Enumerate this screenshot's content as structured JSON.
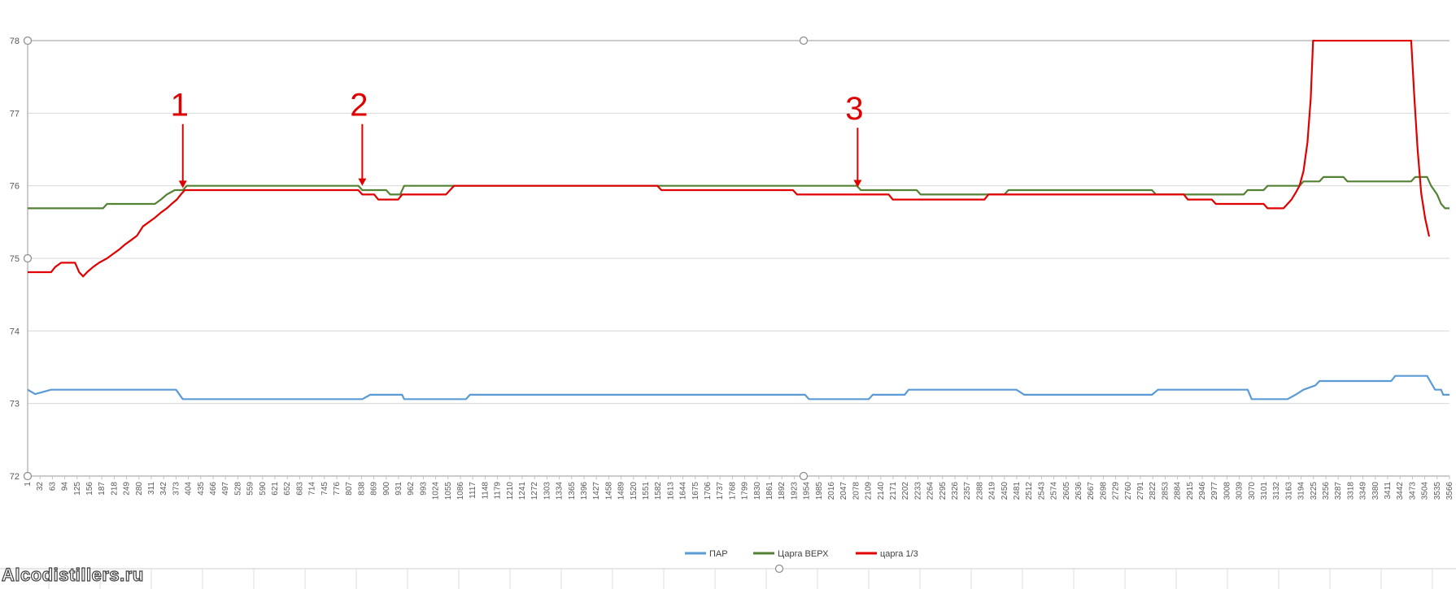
{
  "chart_data": {
    "type": "line",
    "title": "",
    "xlabel": "",
    "ylabel": "",
    "ylim": [
      72,
      78
    ],
    "xlim": [
      1,
      3566
    ],
    "y_ticks": [
      "72",
      "73",
      "74",
      "75",
      "76",
      "77",
      "78"
    ],
    "x_ticks": [
      1,
      32,
      63,
      94,
      125,
      156,
      187,
      218,
      249,
      280,
      311,
      342,
      373,
      404,
      435,
      466,
      497,
      528,
      559,
      590,
      621,
      652,
      683,
      714,
      745,
      776,
      807,
      838,
      869,
      900,
      931,
      962,
      993,
      1024,
      1055,
      1086,
      1117,
      1148,
      1179,
      1210,
      1241,
      1272,
      1303,
      1334,
      1365,
      1396,
      1427,
      1458,
      1489,
      1520,
      1551,
      1582,
      1613,
      1644,
      1675,
      1706,
      1737,
      1768,
      1799,
      1830,
      1861,
      1892,
      1923,
      1954,
      1985,
      2016,
      2047,
      2078,
      2109,
      2140,
      2171,
      2202,
      2233,
      2264,
      2295,
      2326,
      2357,
      2388,
      2419,
      2450,
      2481,
      2512,
      2543,
      2574,
      2605,
      2636,
      2667,
      2698,
      2729,
      2760,
      2791,
      2822,
      2853,
      2884,
      2915,
      2946,
      2977,
      3008,
      3039,
      3070,
      3101,
      3132,
      3163,
      3194,
      3225,
      3256,
      3287,
      3318,
      3349,
      3380,
      3411,
      3442,
      3473,
      3504,
      3535,
      3566
    ],
    "grid": true,
    "legend_position": "bottom",
    "series": [
      {
        "name": "ПАР",
        "color": "#5b9bd5",
        "points": [
          [
            1,
            73.19
          ],
          [
            20,
            73.13
          ],
          [
            60,
            73.19
          ],
          [
            300,
            73.19
          ],
          [
            373,
            73.19
          ],
          [
            390,
            73.06
          ],
          [
            840,
            73.06
          ],
          [
            860,
            73.12
          ],
          [
            940,
            73.12
          ],
          [
            945,
            73.06
          ],
          [
            1100,
            73.06
          ],
          [
            1110,
            73.12
          ],
          [
            1950,
            73.12
          ],
          [
            1960,
            73.06
          ],
          [
            2110,
            73.06
          ],
          [
            2120,
            73.12
          ],
          [
            2200,
            73.12
          ],
          [
            2210,
            73.19
          ],
          [
            2480,
            73.19
          ],
          [
            2500,
            73.12
          ],
          [
            2820,
            73.12
          ],
          [
            2835,
            73.19
          ],
          [
            3060,
            73.19
          ],
          [
            3070,
            73.06
          ],
          [
            3160,
            73.06
          ],
          [
            3180,
            73.12
          ],
          [
            3200,
            73.19
          ],
          [
            3230,
            73.25
          ],
          [
            3240,
            73.31
          ],
          [
            3420,
            73.31
          ],
          [
            3430,
            73.38
          ],
          [
            3510,
            73.38
          ],
          [
            3530,
            73.19
          ],
          [
            3545,
            73.19
          ],
          [
            3550,
            73.12
          ],
          [
            3575,
            73.12
          ]
        ]
      },
      {
        "name": "Царга ВЕРХ",
        "color": "#548235",
        "points": [
          [
            1,
            75.69
          ],
          [
            190,
            75.69
          ],
          [
            200,
            75.75
          ],
          [
            320,
            75.75
          ],
          [
            335,
            75.81
          ],
          [
            350,
            75.88
          ],
          [
            370,
            75.94
          ],
          [
            390,
            75.94
          ],
          [
            400,
            76.0
          ],
          [
            830,
            76.0
          ],
          [
            840,
            75.94
          ],
          [
            900,
            75.94
          ],
          [
            910,
            75.88
          ],
          [
            935,
            75.88
          ],
          [
            945,
            76.0
          ],
          [
            2080,
            76.0
          ],
          [
            2090,
            75.94
          ],
          [
            2230,
            75.94
          ],
          [
            2240,
            75.88
          ],
          [
            2450,
            75.88
          ],
          [
            2460,
            75.94
          ],
          [
            2820,
            75.94
          ],
          [
            2830,
            75.88
          ],
          [
            3050,
            75.88
          ],
          [
            3060,
            75.94
          ],
          [
            3100,
            75.94
          ],
          [
            3110,
            76.0
          ],
          [
            3190,
            76.0
          ],
          [
            3200,
            76.06
          ],
          [
            3240,
            76.06
          ],
          [
            3250,
            76.12
          ],
          [
            3300,
            76.12
          ],
          [
            3310,
            76.06
          ],
          [
            3470,
            76.06
          ],
          [
            3480,
            76.12
          ],
          [
            3510,
            76.12
          ],
          [
            3520,
            76.0
          ],
          [
            3535,
            75.88
          ],
          [
            3545,
            75.75
          ],
          [
            3555,
            75.69
          ],
          [
            3575,
            75.69
          ]
        ]
      },
      {
        "name": "царга 1/3",
        "color": "#e00000",
        "points": [
          [
            1,
            74.81
          ],
          [
            60,
            74.81
          ],
          [
            70,
            74.88
          ],
          [
            85,
            74.94
          ],
          [
            120,
            74.94
          ],
          [
            130,
            74.81
          ],
          [
            140,
            74.75
          ],
          [
            150,
            74.81
          ],
          [
            165,
            74.88
          ],
          [
            180,
            74.94
          ],
          [
            200,
            75.0
          ],
          [
            215,
            75.06
          ],
          [
            230,
            75.12
          ],
          [
            245,
            75.19
          ],
          [
            260,
            75.25
          ],
          [
            275,
            75.31
          ],
          [
            290,
            75.44
          ],
          [
            305,
            75.5
          ],
          [
            320,
            75.56
          ],
          [
            335,
            75.63
          ],
          [
            350,
            75.69
          ],
          [
            362,
            75.75
          ],
          [
            375,
            75.81
          ],
          [
            385,
            75.88
          ],
          [
            395,
            75.94
          ],
          [
            830,
            75.94
          ],
          [
            840,
            75.88
          ],
          [
            870,
            75.88
          ],
          [
            880,
            75.81
          ],
          [
            930,
            75.81
          ],
          [
            940,
            75.88
          ],
          [
            1050,
            75.88
          ],
          [
            1060,
            75.94
          ],
          [
            1070,
            76.0
          ],
          [
            1580,
            76.0
          ],
          [
            1590,
            75.94
          ],
          [
            1920,
            75.94
          ],
          [
            1930,
            75.88
          ],
          [
            2160,
            75.88
          ],
          [
            2170,
            75.81
          ],
          [
            2400,
            75.81
          ],
          [
            2410,
            75.88
          ],
          [
            2900,
            75.88
          ],
          [
            2910,
            75.81
          ],
          [
            2970,
            75.81
          ],
          [
            2980,
            75.75
          ],
          [
            3100,
            75.75
          ],
          [
            3110,
            75.69
          ],
          [
            3150,
            75.69
          ],
          [
            3160,
            75.75
          ],
          [
            3170,
            75.81
          ],
          [
            3180,
            75.9
          ],
          [
            3190,
            76.0
          ],
          [
            3200,
            76.2
          ],
          [
            3210,
            76.6
          ],
          [
            3218,
            77.2
          ],
          [
            3224,
            78.0
          ],
          [
            3470,
            78.0
          ],
          [
            3478,
            77.2
          ],
          [
            3486,
            76.5
          ],
          [
            3495,
            75.9
          ],
          [
            3505,
            75.55
          ],
          [
            3515,
            75.3
          ]
        ]
      }
    ],
    "annotations": [
      {
        "label": "1",
        "x": 390,
        "y_from": 76.85,
        "y_to": 75.97
      },
      {
        "label": "2",
        "x": 840,
        "y_from": 76.85,
        "y_to": 76.0
      },
      {
        "label": "3",
        "x": 2082,
        "y_from": 76.8,
        "y_to": 75.98
      }
    ]
  },
  "legend": {
    "items": [
      {
        "label": "ПАР",
        "color": "#5b9bd5"
      },
      {
        "label": "Царга ВЕРХ",
        "color": "#548235"
      },
      {
        "label": "царга 1/3",
        "color": "#e00000"
      }
    ]
  },
  "watermark": {
    "text": "Alcodistillers.ru"
  }
}
